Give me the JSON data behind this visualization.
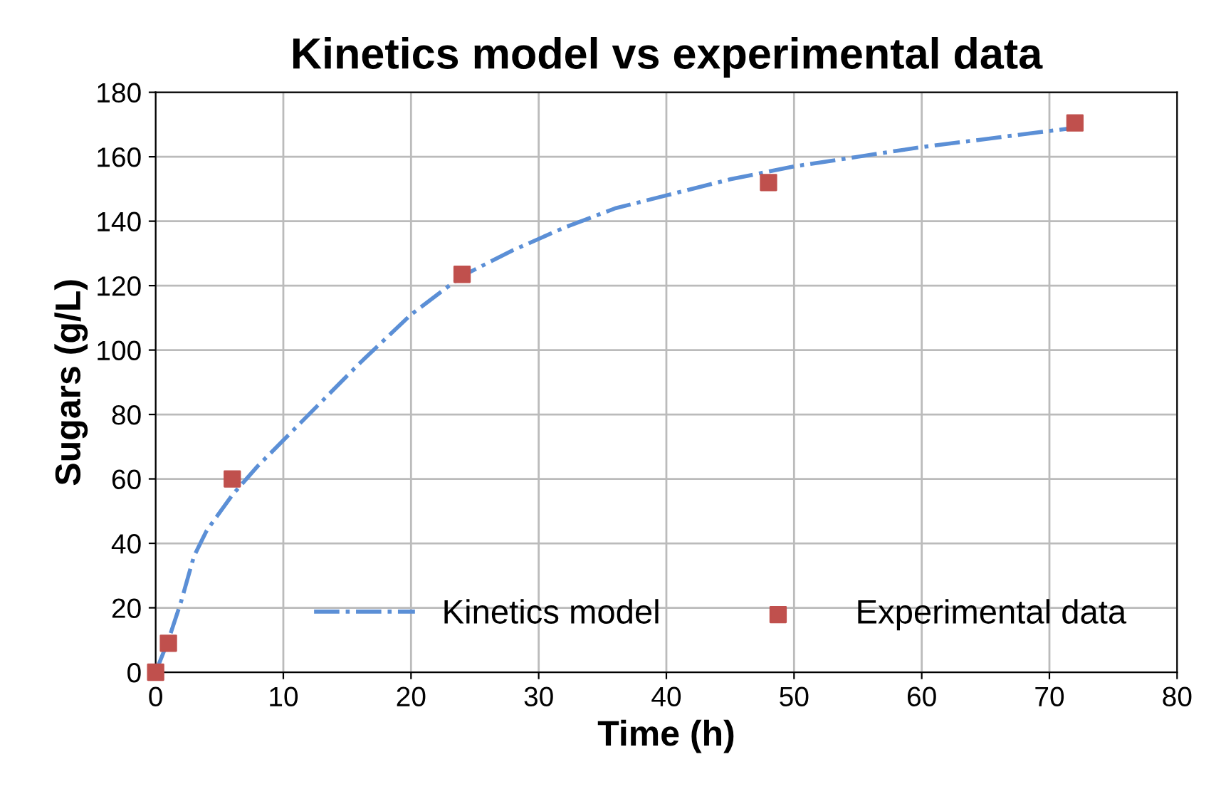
{
  "chart_data": {
    "type": "line",
    "title": "Kinetics model vs experimental data",
    "xlabel": "Time (h)",
    "ylabel": "Sugars (g/L)",
    "series": [
      {
        "name": "Kinetics model",
        "color": "#5b8fd6",
        "line_style": "dashdot",
        "marker": "none",
        "x": [
          0,
          1,
          2,
          3,
          4,
          6,
          8,
          10,
          13,
          16,
          20,
          24,
          28,
          32,
          36,
          40,
          45,
          50,
          55,
          60,
          66,
          72
        ],
        "values": [
          0,
          10,
          22,
          36,
          44,
          55,
          64,
          72,
          84,
          96,
          111,
          123,
          131,
          138,
          144,
          148,
          153,
          157,
          160,
          163,
          166,
          169
        ]
      },
      {
        "name": "Experimental data",
        "type": "scatter",
        "color": "#c0504d",
        "marker": "square",
        "x": [
          0,
          1,
          6,
          24,
          48,
          72
        ],
        "values": [
          0,
          9,
          60,
          123.5,
          152,
          170.5
        ]
      }
    ],
    "xlim": [
      0,
      80
    ],
    "xticks": [
      0,
      10,
      20,
      30,
      40,
      50,
      60,
      70,
      80
    ],
    "ylim": [
      0,
      180
    ],
    "yticks": [
      0,
      20,
      40,
      60,
      80,
      100,
      120,
      140,
      160,
      180
    ],
    "grid": true,
    "legend": "bottom right"
  }
}
